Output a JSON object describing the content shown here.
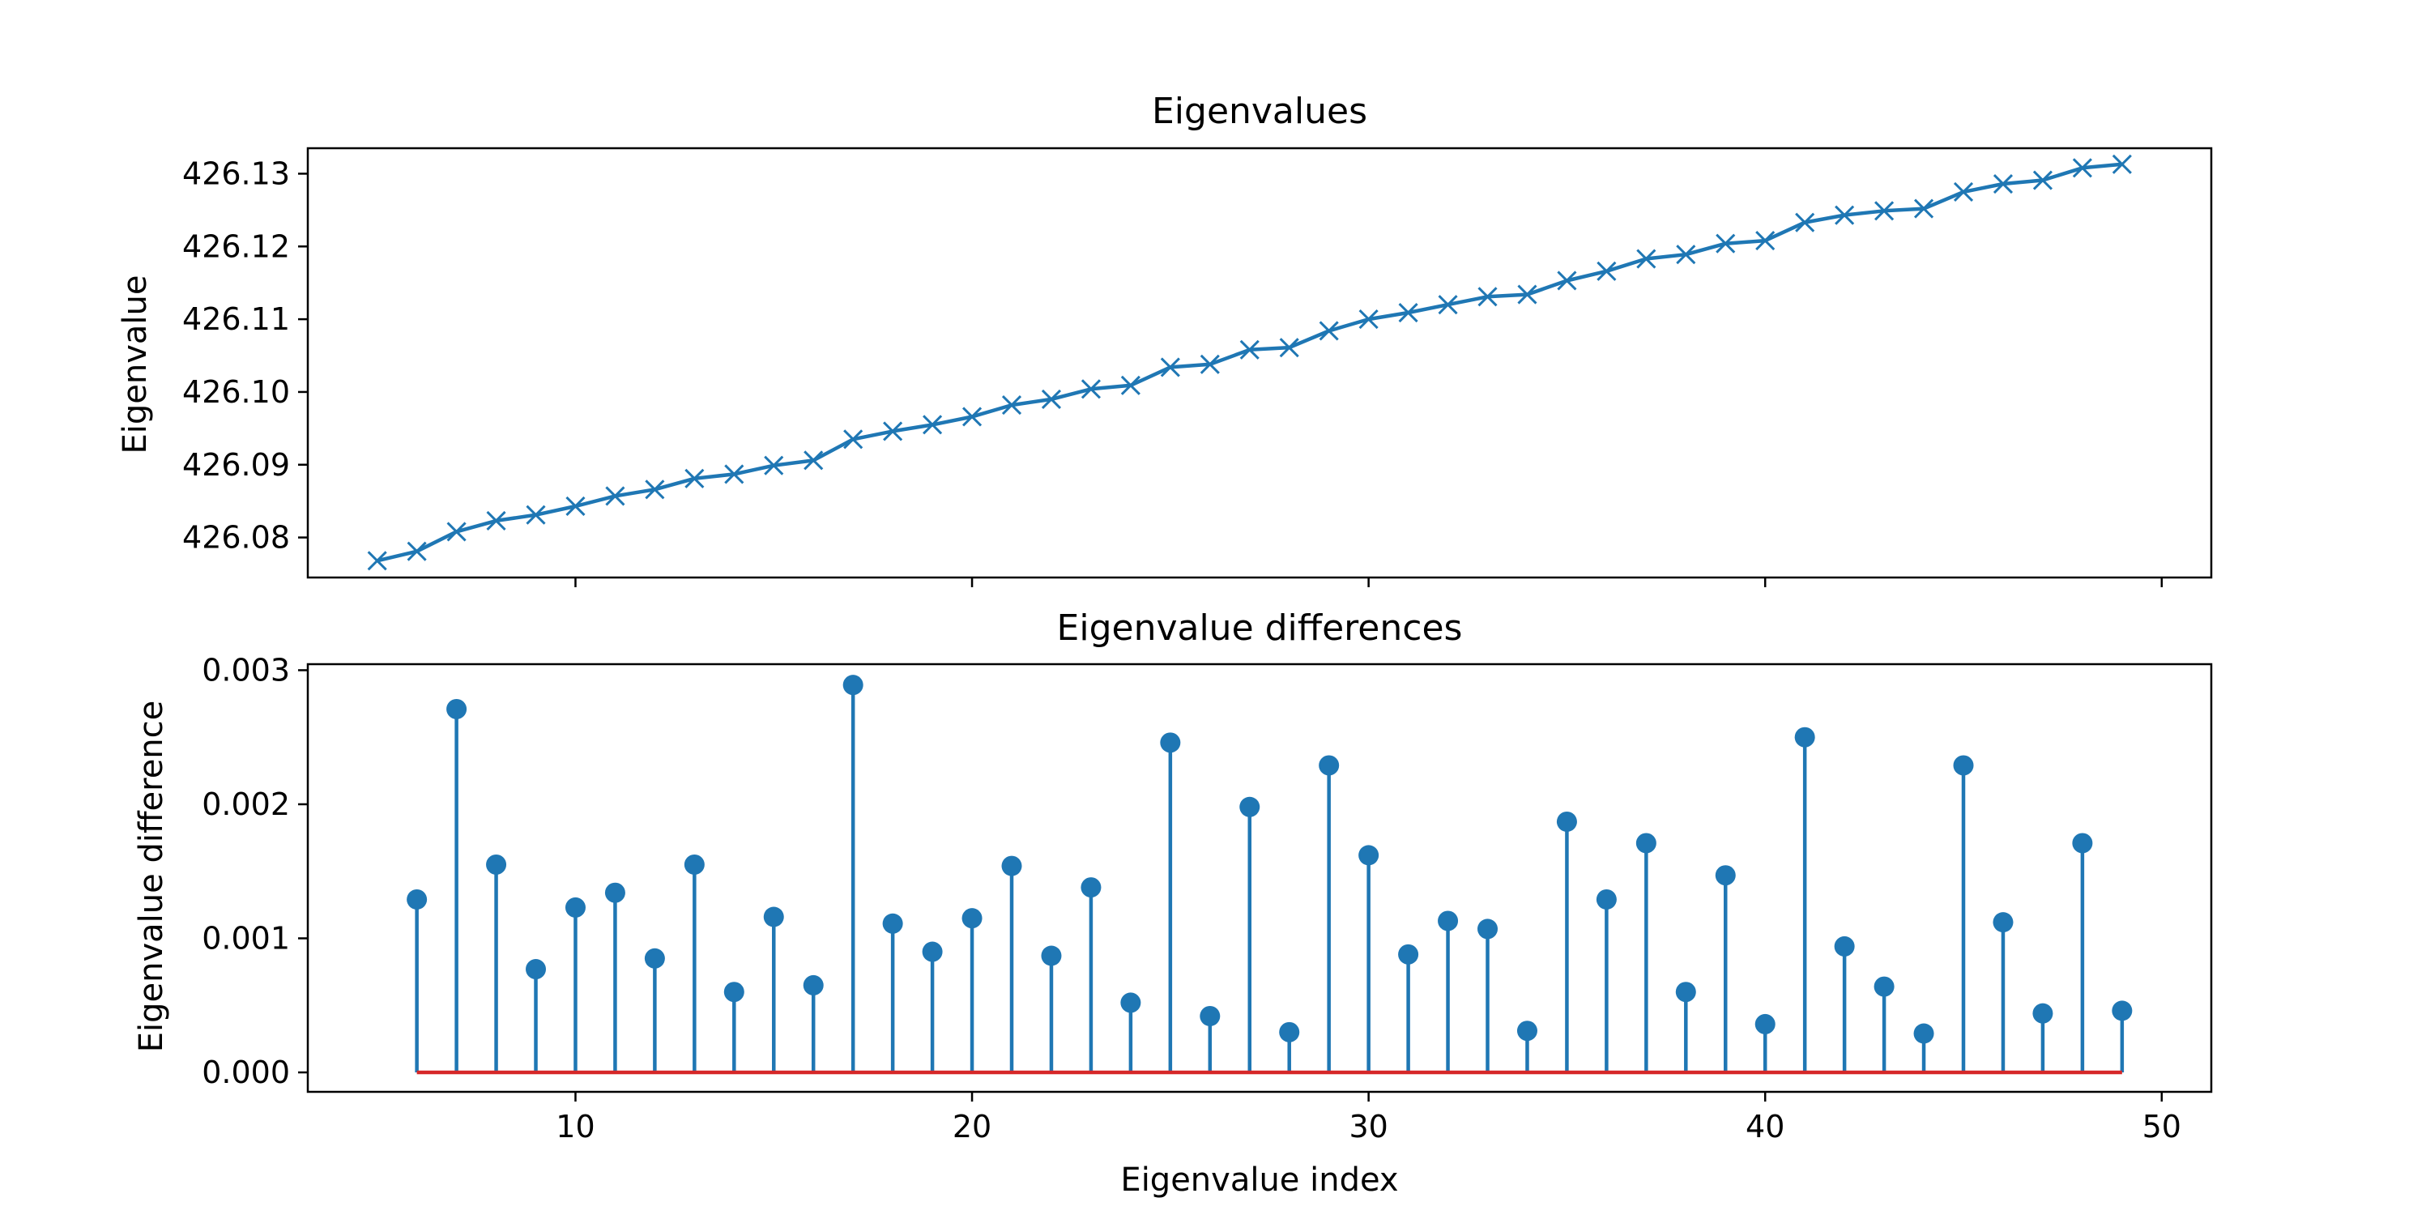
{
  "chart_data": [
    {
      "type": "line",
      "title": "Eigenvalues",
      "xlabel": "",
      "ylabel": "Eigenvalue",
      "marker": "x",
      "color": "#1f77b4",
      "xlim": [
        3.25,
        51.25
      ],
      "ylim": [
        426.0745,
        426.1335
      ],
      "yticks": [
        426.08,
        426.09,
        426.1,
        426.11,
        426.12,
        426.13
      ],
      "ytick_labels": [
        "426.08",
        "426.09",
        "426.10",
        "426.11",
        "426.12",
        "426.13"
      ],
      "xticks": [
        10,
        20,
        30,
        40,
        50
      ],
      "x": [
        5,
        6,
        7,
        8,
        9,
        10,
        11,
        12,
        13,
        14,
        15,
        16,
        17,
        18,
        19,
        20,
        21,
        22,
        23,
        24,
        25,
        26,
        27,
        28,
        29,
        30,
        31,
        32,
        33,
        34,
        35,
        36,
        37,
        38,
        39,
        40,
        41,
        42,
        43,
        44,
        45,
        46,
        47,
        48,
        49
      ],
      "y": [
        426.0768,
        426.0781,
        426.0808,
        426.0823,
        426.0831,
        426.0843,
        426.0857,
        426.0866,
        426.0881,
        426.0887,
        426.0899,
        426.0906,
        426.0935,
        426.0946,
        426.0955,
        426.0966,
        426.0982,
        426.099,
        426.1004,
        426.1009,
        426.1034,
        426.1038,
        426.1058,
        426.1061,
        426.1084,
        426.11,
        426.1109,
        426.112,
        426.1131,
        426.1134,
        426.1153,
        426.1166,
        426.1183,
        426.1189,
        426.1204,
        426.1208,
        426.1233,
        426.1243,
        426.1249,
        426.1252,
        426.1275,
        426.1286,
        426.1291,
        426.1308,
        426.1313
      ]
    },
    {
      "type": "stem",
      "title": "Eigenvalue differences",
      "xlabel": "Eigenvalue index",
      "ylabel": "Eigenvalue difference",
      "color": "#1f77b4",
      "baseline_color": "#d62728",
      "xlim": [
        3.25,
        51.25
      ],
      "ylim": [
        -0.000145,
        0.003045
      ],
      "yticks": [
        0.0,
        0.001,
        0.002,
        0.003
      ],
      "ytick_labels": [
        "0.000",
        "0.001",
        "0.002",
        "0.003"
      ],
      "xticks": [
        10,
        20,
        30,
        40,
        50
      ],
      "xtick_labels": [
        "10",
        "20",
        "30",
        "40",
        "50"
      ],
      "x": [
        6,
        7,
        8,
        9,
        10,
        11,
        12,
        13,
        14,
        15,
        16,
        17,
        18,
        19,
        20,
        21,
        22,
        23,
        24,
        25,
        26,
        27,
        28,
        29,
        30,
        31,
        32,
        33,
        34,
        35,
        36,
        37,
        38,
        39,
        40,
        41,
        42,
        43,
        44,
        45,
        46,
        47,
        48,
        49
      ],
      "y": [
        0.00129,
        0.00271,
        0.00155,
        0.00077,
        0.00123,
        0.00134,
        0.00085,
        0.00155,
        0.0006,
        0.00116,
        0.00065,
        0.00289,
        0.00111,
        0.0009,
        0.00115,
        0.00154,
        0.00087,
        0.00138,
        0.00052,
        0.00246,
        0.00042,
        0.00198,
        0.0003,
        0.00229,
        0.00162,
        0.00088,
        0.00113,
        0.00107,
        0.00031,
        0.00187,
        0.00129,
        0.00171,
        0.0006,
        0.00147,
        0.00036,
        0.0025,
        0.00094,
        0.00064,
        0.00029,
        0.00229,
        0.00112,
        0.00044,
        0.00171,
        0.00046
      ]
    }
  ]
}
